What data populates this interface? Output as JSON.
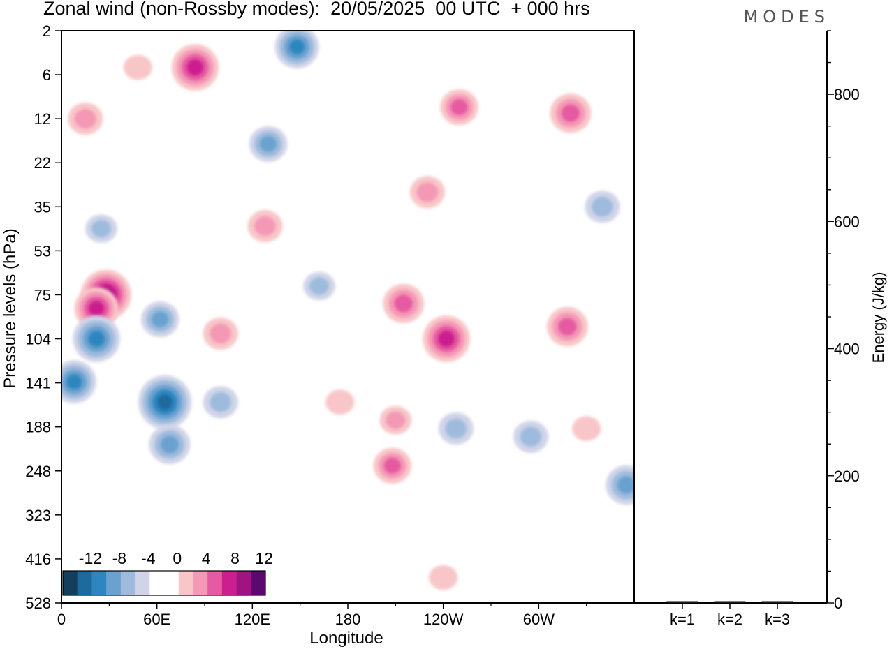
{
  "header": {
    "title": "Zonal wind (non-Rossby modes):  20/05/2025  00 UTC  + 000 hrs",
    "logo": "MODES"
  },
  "chart_data": [
    {
      "type": "heatmap",
      "title": "Zonal wind (non-Rossby modes):  20/05/2025  00 UTC  + 000 hrs",
      "xlabel": "Longitude",
      "ylabel": "Pressure levels (hPa)",
      "x_ticks": [
        "0",
        "60E",
        "120E",
        "180",
        "120W",
        "60W"
      ],
      "x_tick_values": [
        0,
        60,
        120,
        180,
        240,
        300
      ],
      "xlim": [
        0,
        360
      ],
      "y_ticks": [
        "2",
        "6",
        "12",
        "22",
        "35",
        "53",
        "75",
        "104",
        "141",
        "188",
        "248",
        "323",
        "416",
        "528"
      ],
      "y_scale": "log",
      "colorbar": {
        "labels": [
          "-12",
          "-8",
          "-4",
          "0",
          "4",
          "8",
          "12"
        ],
        "colors": [
          "#133e5c",
          "#1b6b9e",
          "#2f86bf",
          "#6aa1cf",
          "#9ebbdd",
          "#d0d4e8",
          "#ffffff",
          "#ffffff",
          "#f8c6c8",
          "#f598b6",
          "#e55aa0",
          "#cc1f8f",
          "#a01481",
          "#5a0a6e"
        ]
      },
      "blobs": [
        {
          "lon": 28,
          "lev": 75,
          "value": 10
        },
        {
          "lon": 22,
          "lev": 83,
          "value": 8
        },
        {
          "lon": 84,
          "lev": 5,
          "value": 9
        },
        {
          "lon": 48,
          "lev": 5,
          "value": 3
        },
        {
          "lon": 148,
          "lev": 3,
          "value": -8
        },
        {
          "lon": 130,
          "lev": 17,
          "value": -6
        },
        {
          "lon": 65,
          "lev": 160,
          "value": -11
        },
        {
          "lon": 68,
          "lev": 210,
          "value": -7
        },
        {
          "lon": 8,
          "lev": 140,
          "value": -8
        },
        {
          "lon": 22,
          "lev": 104,
          "value": -9
        },
        {
          "lon": 62,
          "lev": 90,
          "value": -6
        },
        {
          "lon": 100,
          "lev": 160,
          "value": -5
        },
        {
          "lon": 162,
          "lev": 70,
          "value": -4
        },
        {
          "lon": 25,
          "lev": 43,
          "value": -4
        },
        {
          "lon": 208,
          "lev": 240,
          "value": 6
        },
        {
          "lon": 210,
          "lev": 180,
          "value": 4
        },
        {
          "lon": 242,
          "lev": 104,
          "value": 9
        },
        {
          "lon": 215,
          "lev": 80,
          "value": 7
        },
        {
          "lon": 250,
          "lev": 10,
          "value": 6
        },
        {
          "lon": 320,
          "lev": 11,
          "value": 7
        },
        {
          "lon": 230,
          "lev": 30,
          "value": 5
        },
        {
          "lon": 128,
          "lev": 42,
          "value": 5
        },
        {
          "lon": 248,
          "lev": 190,
          "value": -5
        },
        {
          "lon": 295,
          "lev": 200,
          "value": -5
        },
        {
          "lon": 355,
          "lev": 270,
          "value": -7
        },
        {
          "lon": 240,
          "lev": 460,
          "value": 3
        },
        {
          "lon": 318,
          "lev": 95,
          "value": 7
        },
        {
          "lon": 100,
          "lev": 100,
          "value": 5
        },
        {
          "lon": 15,
          "lev": 12,
          "value": 5
        },
        {
          "lon": 340,
          "lev": 35,
          "value": -5
        },
        {
          "lon": 175,
          "lev": 160,
          "value": 3
        },
        {
          "lon": 330,
          "lev": 190,
          "value": 3
        }
      ]
    },
    {
      "type": "bar",
      "categories": [
        "k=1",
        "k=2",
        "k=3"
      ],
      "values": [
        2,
        1,
        1
      ],
      "ylabel": "Energy (J/kg)",
      "ylim": [
        0,
        900
      ],
      "y_ticks": [
        0,
        200,
        400,
        600,
        800
      ]
    }
  ]
}
